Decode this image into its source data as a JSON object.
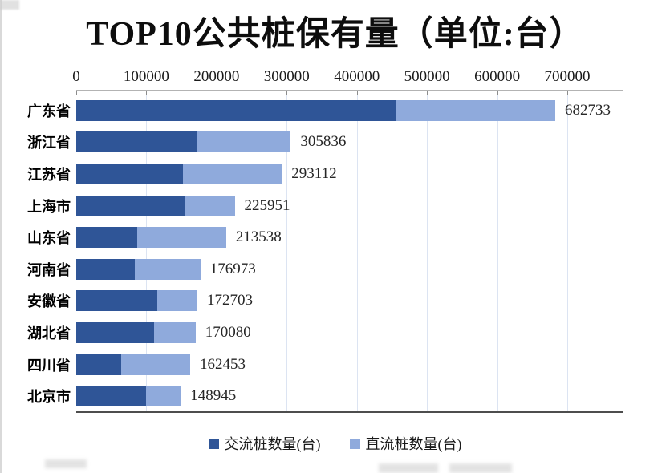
{
  "chart_data": {
    "type": "bar",
    "orientation": "horizontal",
    "stacked": true,
    "title": "TOP10公共桩保有量（单位:台）",
    "categories": [
      "广东省",
      "浙江省",
      "江苏省",
      "上海市",
      "山东省",
      "河南省",
      "安徽省",
      "湖北省",
      "四川省",
      "北京市"
    ],
    "series": [
      {
        "name": "交流桩数量(台)",
        "color": "#2F5597",
        "values": [
          456000,
          171000,
          152000,
          156000,
          87000,
          84000,
          116000,
          111000,
          64000,
          99000
        ]
      },
      {
        "name": "直流桩数量(台)",
        "color": "#8FAADC",
        "values": [
          226733,
          134836,
          141112,
          69951,
          126538,
          92973,
          56703,
          59080,
          98453,
          49945
        ]
      }
    ],
    "totals": [
      682733,
      305836,
      293112,
      225951,
      213538,
      176973,
      172703,
      170080,
      162453,
      148945
    ],
    "x_axis": {
      "max": 780000,
      "gridline_interval": 100000,
      "ticks": [
        {
          "value": 0,
          "label": "0"
        },
        {
          "value": 100000,
          "label": "100000"
        },
        {
          "value": 200000,
          "label": "200000"
        },
        {
          "value": 300000,
          "label": "300000"
        },
        {
          "value": 400000,
          "label": "400000"
        },
        {
          "value": 500000,
          "label": "500000"
        },
        {
          "value": 600000,
          "label": "600000"
        },
        {
          "value": 700000,
          "label": "700000"
        }
      ]
    },
    "legend_position": "bottom",
    "grid": true
  },
  "legend": {
    "items": [
      {
        "label": "交流桩数量(台)",
        "color": "#2F5597"
      },
      {
        "label": "直流桩数量(台)",
        "color": "#8FAADC"
      }
    ]
  },
  "colors": {
    "ac_bar": "#2F5597",
    "dc_bar": "#8FAADC",
    "gridline": "#DCE4F2",
    "axis_top_line": "#B3B3B3",
    "axis_bottom_line": "#4D4D4D",
    "background": "#FFFFFF"
  }
}
